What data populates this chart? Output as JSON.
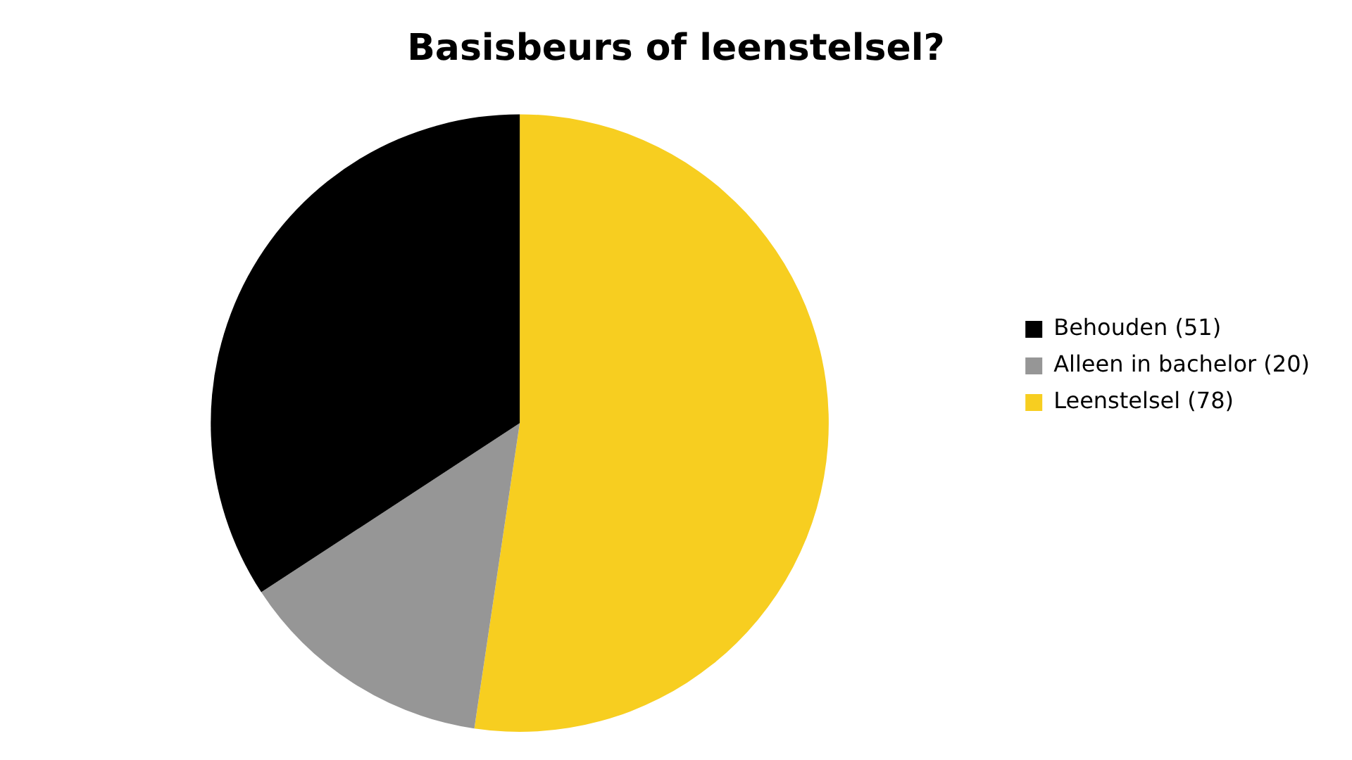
{
  "chart_data": {
    "type": "pie",
    "title": "Basisbeurs of leenstelsel?",
    "categories": [
      "Behouden (51)",
      "Alleen in bachelor (20)",
      "Leenstelsel (78)"
    ],
    "values": [
      51,
      20,
      78
    ],
    "colors": [
      "#000000",
      "#969696",
      "#f7ce20"
    ],
    "legend": "right"
  }
}
